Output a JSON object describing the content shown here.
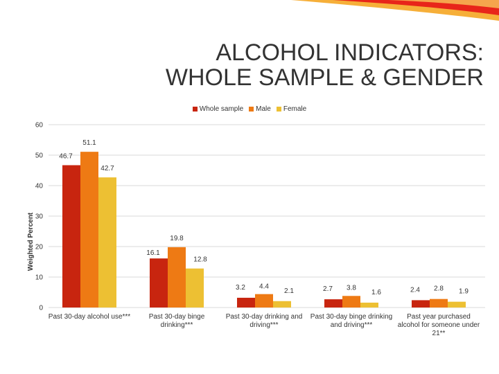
{
  "slide": {
    "title_line1": "ALCOHOL INDICATORS:",
    "title_line2": "WHOLE SAMPLE & GENDER"
  },
  "colors": {
    "whole_sample": "#C8250F",
    "male": "#EE7A14",
    "female": "#EDC033",
    "deco_red": "#E8251A",
    "deco_orange": "#F5A623"
  },
  "chart_data": {
    "type": "bar",
    "title": "",
    "xlabel": "",
    "ylabel": "Weighted Percent",
    "ylim": [
      0,
      60
    ],
    "yticks": [
      0,
      10,
      20,
      30,
      40,
      50,
      60
    ],
    "legend_position": "top",
    "categories": [
      [
        "Past 30-day alcohol use***"
      ],
      [
        "Past 30-day binge",
        "drinking***"
      ],
      [
        "Past 30-day drinking and",
        "driving***"
      ],
      [
        "Past 30-day binge drinking",
        "and driving***"
      ],
      [
        "Past year purchased",
        "alcohol for someone under",
        "21**"
      ]
    ],
    "series": [
      {
        "name": "Whole sample",
        "values": [
          46.7,
          16.1,
          3.2,
          2.7,
          2.4
        ]
      },
      {
        "name": "Male",
        "values": [
          51.1,
          19.8,
          4.4,
          3.8,
          2.8
        ]
      },
      {
        "name": "Female",
        "values": [
          42.7,
          12.8,
          2.1,
          1.6,
          1.9
        ]
      }
    ]
  }
}
